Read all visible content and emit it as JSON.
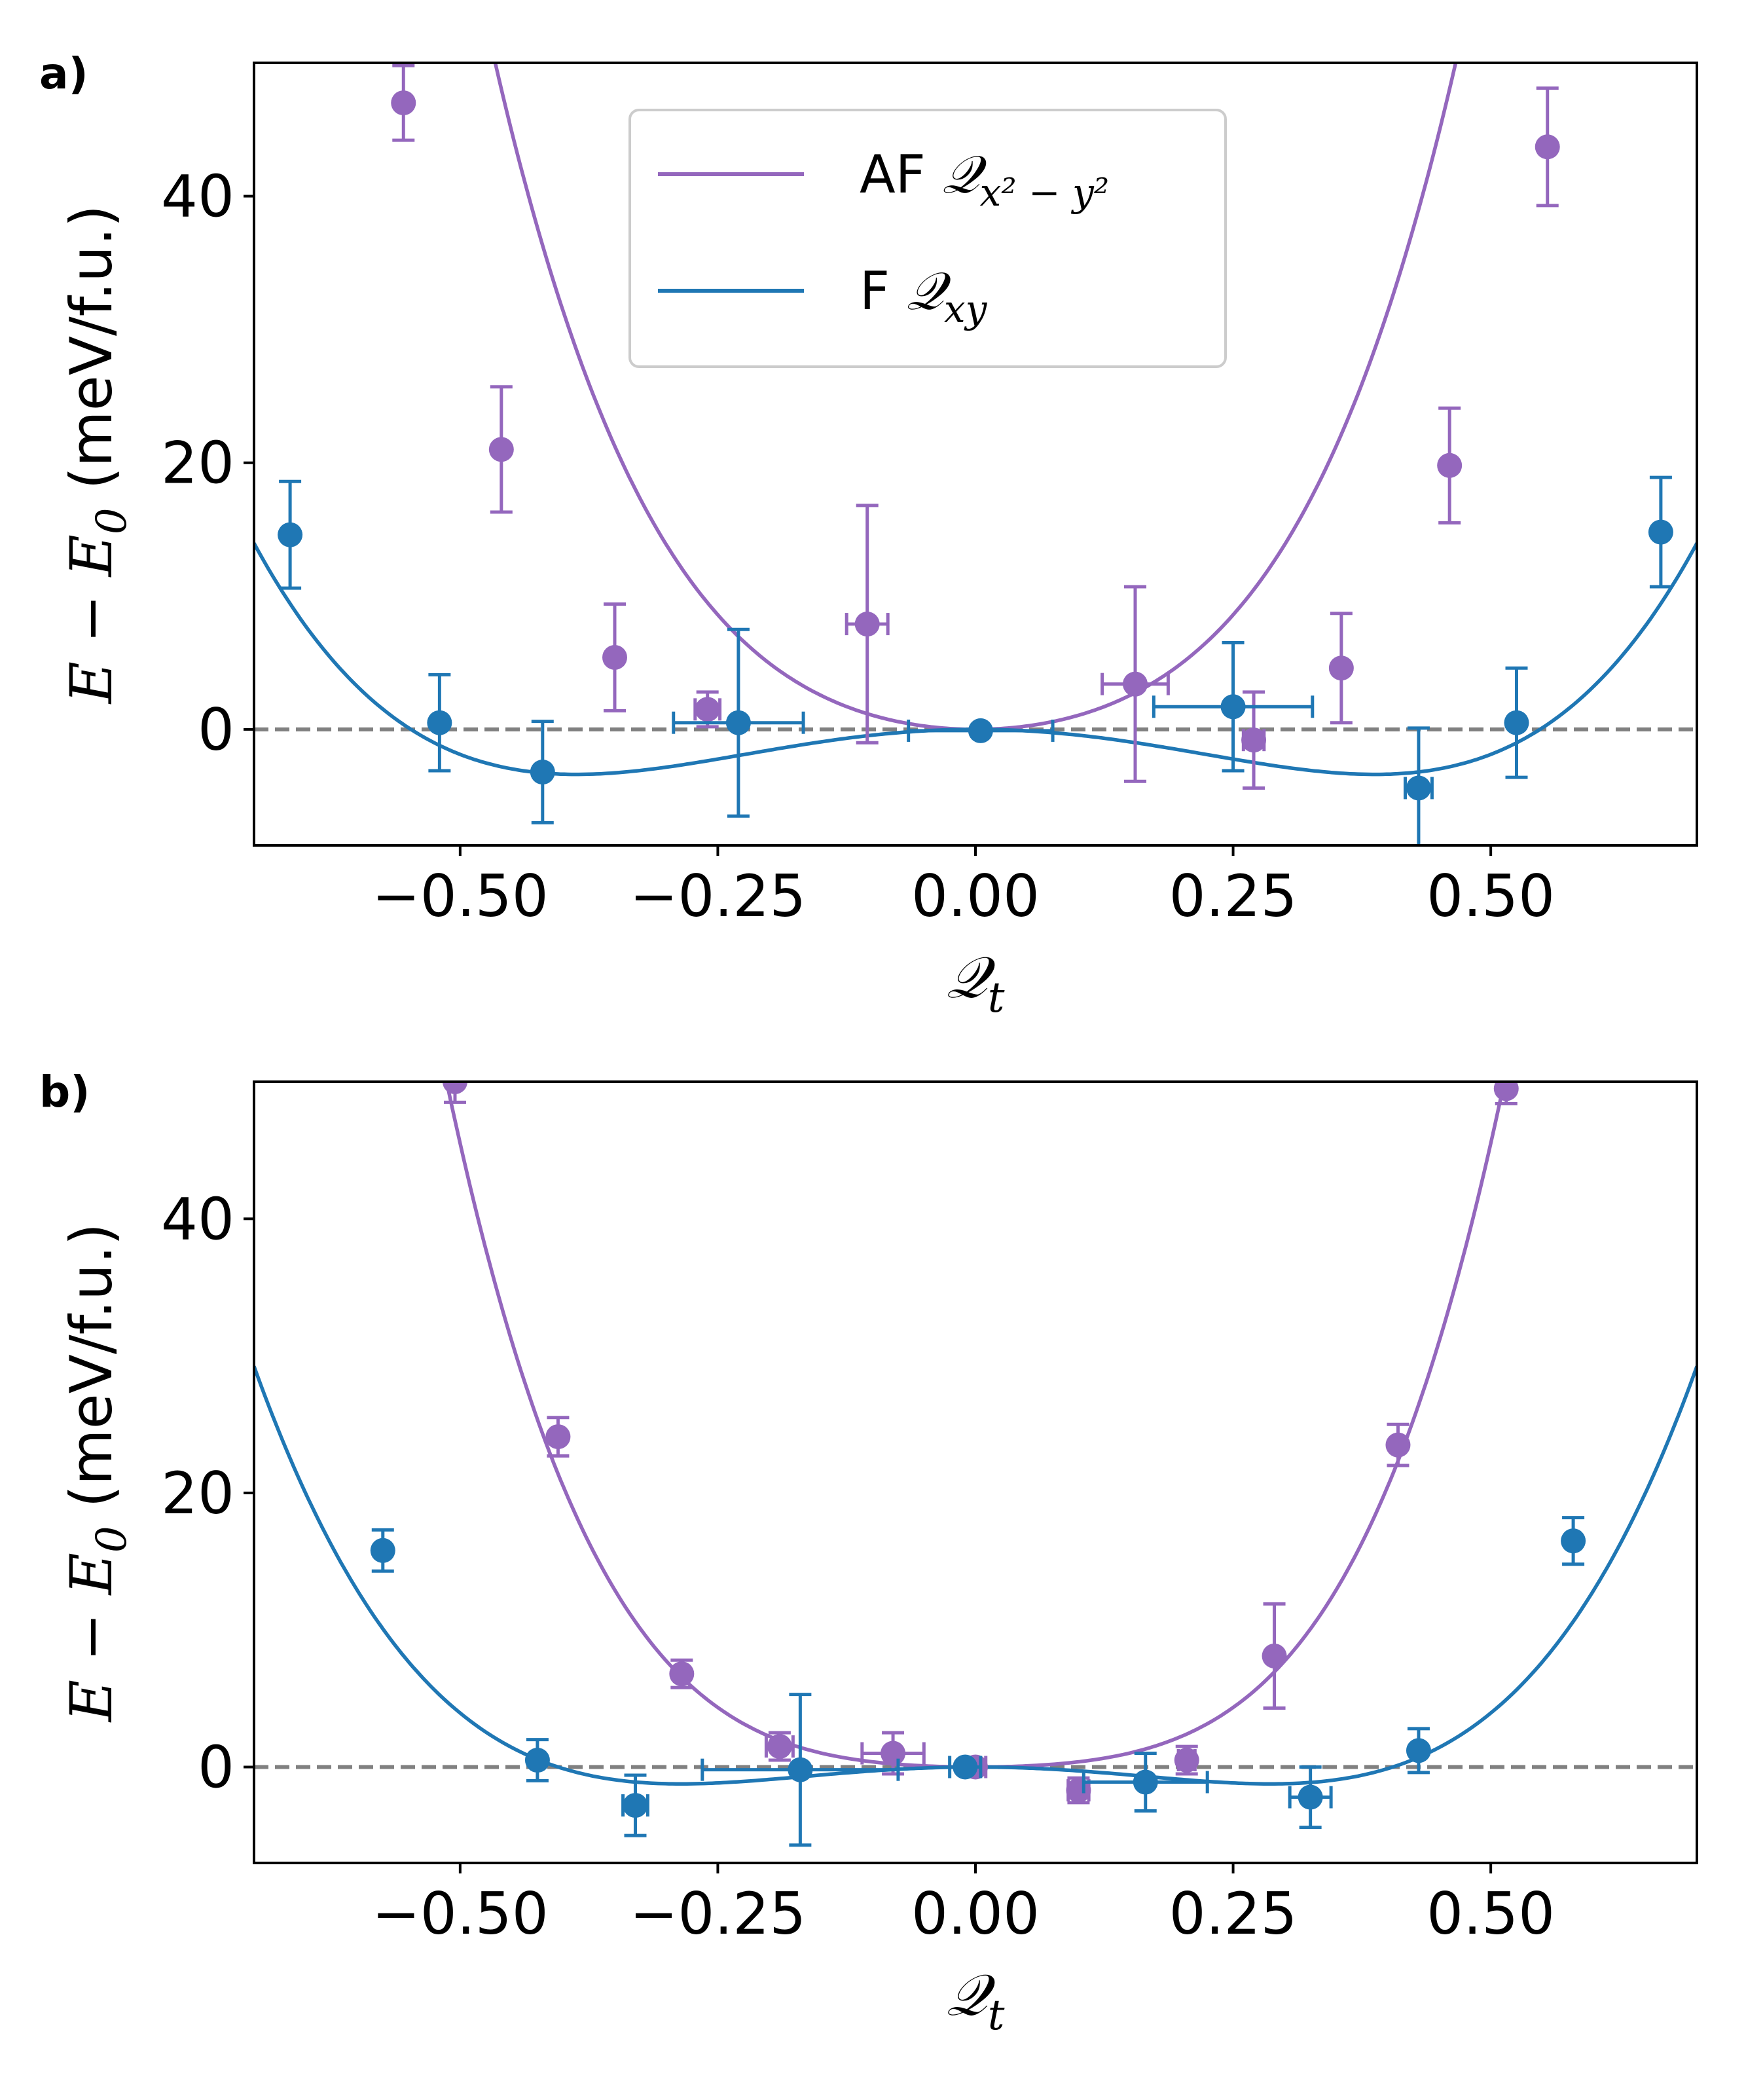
{
  "chart_data": [
    {
      "panel_label": "a)",
      "type": "scatter",
      "xlabel": "𝒬",
      "xlabel_sub": "t",
      "ylabel": {
        "prefix": "E − E",
        "sub": "0",
        "suffix": " (meV/f.u.)"
      },
      "xlim": [
        -0.7,
        0.7
      ],
      "ylim": [
        -8.7,
        50
      ],
      "xticks": [
        -0.5,
        -0.25,
        0.0,
        0.25,
        0.5
      ],
      "xtick_labels": [
        "−0.50",
        "−0.25",
        "0.00",
        "0.25",
        "0.50"
      ],
      "yticks": [
        0,
        20,
        40
      ],
      "ytick_labels": [
        "0",
        "20",
        "40"
      ],
      "reference_line": {
        "y": 0,
        "style": "dashed",
        "color": "#808080"
      },
      "legend": {
        "position": "upper-center",
        "entries": [
          {
            "label": "AF ",
            "math": "𝒬",
            "sub": "x² − y²",
            "color": "#9467bd"
          },
          {
            "label": "F ",
            "math": "𝒬",
            "sub": "xy",
            "color": "#1f77b4"
          }
        ]
      },
      "series": [
        {
          "name": "AF Qx2-y2",
          "color": "#9467bd",
          "fit": {
            "a2": 100,
            "a4": 600
          },
          "points": [
            {
              "x": -0.555,
              "y": 47.0,
              "yerr": 2.8,
              "xerr": 0
            },
            {
              "x": -0.46,
              "y": 21.0,
              "yerr": 4.7,
              "xerr": 0
            },
            {
              "x": -0.35,
              "y": 5.4,
              "yerr": 4.0,
              "xerr": 0
            },
            {
              "x": -0.26,
              "y": 1.5,
              "yerr": 1.3,
              "xerr": 0.012
            },
            {
              "x": -0.105,
              "y": 7.9,
              "yerr": 8.9,
              "xerr": 0.02
            },
            {
              "x": 0.155,
              "y": 3.4,
              "yerr": 7.3,
              "xerr": 0.032
            },
            {
              "x": 0.27,
              "y": -0.8,
              "yerr": 3.6,
              "xerr": 0.01
            },
            {
              "x": 0.355,
              "y": 4.6,
              "yerr": 4.1,
              "xerr": 0
            },
            {
              "x": 0.46,
              "y": 19.8,
              "yerr": 4.3,
              "xerr": 0
            },
            {
              "x": 0.555,
              "y": 43.7,
              "yerr": 4.4,
              "xerr": 0
            }
          ]
        },
        {
          "name": "F Qxy",
          "color": "#1f77b4",
          "fit": {
            "a2": -45,
            "a4": 150
          },
          "points": [
            {
              "x": -0.665,
              "y": 14.6,
              "yerr": 4.0,
              "xerr": 0
            },
            {
              "x": -0.52,
              "y": 0.5,
              "yerr": 3.6,
              "xerr": 0
            },
            {
              "x": -0.42,
              "y": -3.2,
              "yerr": 3.8,
              "xerr": 0
            },
            {
              "x": -0.23,
              "y": 0.5,
              "yerr": 7.0,
              "xerr": 0.063
            },
            {
              "x": 0.005,
              "y": -0.1,
              "yerr": 0,
              "xerr": 0.07
            },
            {
              "x": 0.25,
              "y": 1.7,
              "yerr": 4.8,
              "xerr": 0.077
            },
            {
              "x": 0.43,
              "y": -4.4,
              "yerr": 4.5,
              "xerr": 0.013
            },
            {
              "x": 0.525,
              "y": 0.5,
              "yerr": 4.1,
              "xerr": 0
            },
            {
              "x": 0.665,
              "y": 14.8,
              "yerr": 4.1,
              "xerr": 0
            }
          ]
        }
      ]
    },
    {
      "panel_label": "b)",
      "type": "scatter",
      "xlabel": "𝒬",
      "xlabel_sub": "t",
      "ylabel": {
        "prefix": "E − E",
        "sub": "0",
        "suffix": " (meV/f.u.)"
      },
      "xlim": [
        -0.7,
        0.7
      ],
      "ylim": [
        -7,
        50
      ],
      "xticks": [
        -0.5,
        -0.25,
        0.0,
        0.25,
        0.5
      ],
      "xtick_labels": [
        "−0.50",
        "−0.25",
        "0.00",
        "0.25",
        "0.50"
      ],
      "yticks": [
        0,
        20,
        40
      ],
      "ytick_labels": [
        "0",
        "20",
        "40"
      ],
      "reference_line": {
        "y": 0,
        "style": "dashed",
        "color": "#808080"
      },
      "series": [
        {
          "name": "AF Qx2-y2",
          "color": "#9467bd",
          "fit": {
            "a2": 32,
            "a4": 600
          },
          "points": [
            {
              "x": -0.505,
              "y": 50.0,
              "yerr": 1.5,
              "xerr": 0
            },
            {
              "x": -0.405,
              "y": 24.1,
              "yerr": 1.4,
              "xerr": 0
            },
            {
              "x": -0.285,
              "y": 6.8,
              "yerr": 1.0,
              "xerr": 0
            },
            {
              "x": -0.19,
              "y": 1.5,
              "yerr": 1.0,
              "xerr": 0.013
            },
            {
              "x": -0.08,
              "y": 1.0,
              "yerr": 1.5,
              "xerr": 0.03
            },
            {
              "x": 0.0,
              "y": 0.0,
              "yerr": 0,
              "xerr": 0.01
            },
            {
              "x": 0.1,
              "y": -1.7,
              "yerr": 0.9,
              "xerr": 0.01
            },
            {
              "x": 0.205,
              "y": 0.5,
              "yerr": 1.0,
              "xerr": 0.008
            },
            {
              "x": 0.29,
              "y": 8.1,
              "yerr": 3.8,
              "xerr": 0
            },
            {
              "x": 0.41,
              "y": 23.5,
              "yerr": 1.5,
              "xerr": 0
            },
            {
              "x": 0.515,
              "y": 49.5,
              "yerr": 1.1,
              "xerr": 0
            }
          ]
        },
        {
          "name": "F Qxy",
          "color": "#1f77b4",
          "fit": {
            "a2": -30,
            "a4": 183
          },
          "points": [
            {
              "x": -0.575,
              "y": 15.8,
              "yerr": 1.5,
              "xerr": 0
            },
            {
              "x": -0.425,
              "y": 0.5,
              "yerr": 1.5,
              "xerr": 0
            },
            {
              "x": -0.33,
              "y": -2.8,
              "yerr": 2.2,
              "xerr": 0.012
            },
            {
              "x": -0.17,
              "y": -0.2,
              "yerr": 5.5,
              "xerr": 0.095
            },
            {
              "x": -0.01,
              "y": 0.0,
              "yerr": 0,
              "xerr": 0.015
            },
            {
              "x": 0.165,
              "y": -1.1,
              "yerr": 2.1,
              "xerr": 0.06
            },
            {
              "x": 0.325,
              "y": -2.2,
              "yerr": 2.2,
              "xerr": 0.02
            },
            {
              "x": 0.43,
              "y": 1.2,
              "yerr": 1.6,
              "xerr": 0
            },
            {
              "x": 0.58,
              "y": 16.5,
              "yerr": 1.7,
              "xerr": 0
            }
          ]
        }
      ]
    }
  ]
}
